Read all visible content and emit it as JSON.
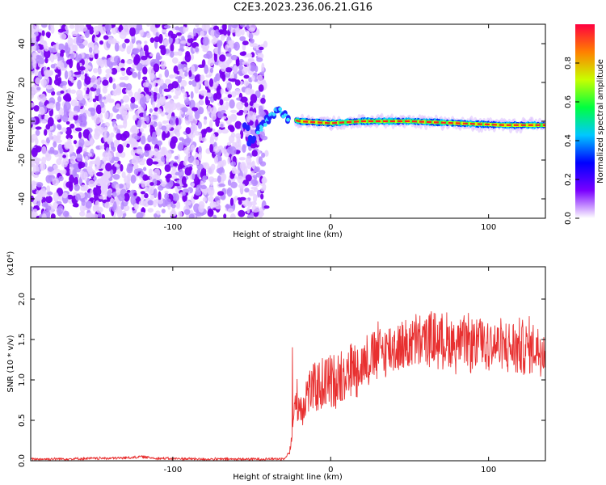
{
  "title": "C2E3.2023.236.06.21.G16",
  "chart_data": [
    {
      "type": "heatmap",
      "xlabel": "Height of straight line (km)",
      "ylabel": "Frequency (Hz)",
      "xlim": [
        -190,
        136
      ],
      "ylim": [
        -50,
        50
      ],
      "xticks": [
        -100,
        0,
        100
      ],
      "yticks": [
        -40,
        -20,
        0,
        20,
        40
      ],
      "noise_region_x": [
        -190,
        -42
      ],
      "colorbar": {
        "label": "Normalized spectral amplitude",
        "range": [
          0.0,
          1.0
        ],
        "ticks": [
          "0.0",
          "0.2",
          "0.4",
          "0.6",
          "0.8"
        ],
        "colormap": [
          "#ffffff",
          "#7a00ff",
          "#0000ff",
          "#00c8ff",
          "#00ff40",
          "#c8ff00",
          "#ff8000",
          "#ff0040"
        ]
      },
      "signal_track": [
        {
          "x": -52,
          "f": -12
        },
        {
          "x": -45,
          "f": -4
        },
        {
          "x": -38,
          "f": 3
        },
        {
          "x": -33,
          "f": 6
        },
        {
          "x": -28,
          "f": 2
        },
        {
          "x": -20,
          "f": 0
        },
        {
          "x": 0,
          "f": -1
        },
        {
          "x": 20,
          "f": 0
        },
        {
          "x": 50,
          "f": 0
        },
        {
          "x": 80,
          "f": -1
        },
        {
          "x": 110,
          "f": -2
        },
        {
          "x": 136,
          "f": -2
        }
      ]
    },
    {
      "type": "line",
      "xlabel": "Height of straight line (km)",
      "ylabel": "SNR (10 * v/v)",
      "y_multiplier": "(x10⁴)",
      "xlim": [
        -190,
        136
      ],
      "ylim": [
        0,
        24000
      ],
      "xticks": [
        -100,
        0,
        100
      ],
      "yticks": [
        "0.0",
        "0.5",
        "1.0",
        "1.5",
        "2.0"
      ],
      "series": [
        {
          "color": "#e83030",
          "x": [
            -190,
            -160,
            -130,
            -120,
            -110,
            -80,
            -50,
            -30,
            -26,
            -24,
            -22,
            -20,
            -18,
            -15,
            -10,
            -5,
            0,
            10,
            20,
            30,
            40,
            50,
            60,
            70,
            80,
            90,
            100,
            110,
            120,
            130,
            136
          ],
          "y": [
            200,
            250,
            350,
            500,
            300,
            200,
            200,
            250,
            1000,
            4000,
            8000,
            7000,
            6500,
            8500,
            9000,
            9500,
            10000,
            11000,
            12000,
            13500,
            14000,
            14500,
            15000,
            15000,
            14500,
            14500,
            14500,
            14000,
            14000,
            14000,
            14000
          ]
        }
      ]
    }
  ]
}
